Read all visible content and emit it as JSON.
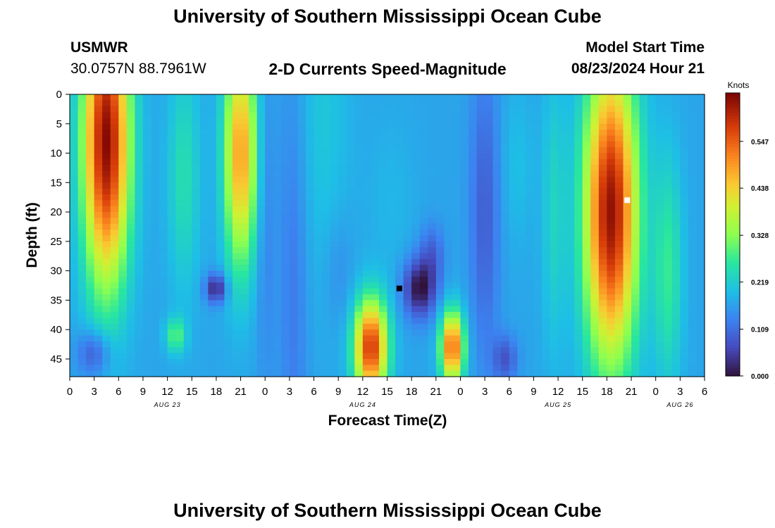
{
  "header": {
    "title": "University of Southern Mississippi Ocean Cube",
    "station": "USMWR",
    "coords": "30.0757N  88.7961W",
    "subtitle": "2-D Currents Speed-Magnitude",
    "model_start_label": "Model Start Time",
    "model_start_value": "08/23/2024 Hour 21"
  },
  "footer": {
    "title": "University of Southern Mississippi Ocean Cube"
  },
  "chart_data": {
    "type": "heatmap",
    "title": "2-D Currents Speed-Magnitude",
    "xlabel": "Forecast Time(Z)",
    "ylabel": "Depth (ft)",
    "colorbar_label": "Knots",
    "colorbar_ticks": [
      "0.000",
      "0.109",
      "0.219",
      "0.328",
      "0.438",
      "0.547"
    ],
    "colorbar_values": [
      0.0,
      0.109,
      0.219,
      0.328,
      0.438,
      0.547
    ],
    "zlim": [
      0,
      0.66
    ],
    "x_tick_labels": [
      "0",
      "3",
      "6",
      "9",
      "12",
      "15",
      "18",
      "21",
      "0",
      "3",
      "6",
      "9",
      "12",
      "15",
      "18",
      "21",
      "0",
      "3",
      "6",
      "9",
      "12",
      "15",
      "18",
      "21",
      "0",
      "3",
      "6"
    ],
    "x_range_hours_since_aug23_00z": [
      0,
      78
    ],
    "date_labels": [
      {
        "label": "AUG 23",
        "hour": 12
      },
      {
        "label": "AUG 24",
        "hour": 36
      },
      {
        "label": "AUG 25",
        "hour": 60
      },
      {
        "label": "AUG 26",
        "hour": 75
      }
    ],
    "y_tick_labels": [
      "0",
      "5",
      "10",
      "15",
      "20",
      "25",
      "30",
      "35",
      "40",
      "45"
    ],
    "y_ticks": [
      0,
      5,
      10,
      15,
      20,
      25,
      30,
      35,
      40,
      45
    ],
    "ylim": [
      0,
      48
    ],
    "y_inverted": true,
    "background_speed": 0.17,
    "features": [
      {
        "time": 4.5,
        "depth": 8,
        "w": 2.8,
        "h": 24,
        "amp": 0.48
      },
      {
        "time": 3.0,
        "depth": 44,
        "w": 2.0,
        "h": 4,
        "amp": -0.1
      },
      {
        "time": 13.0,
        "depth": 41,
        "w": 1.2,
        "h": 3,
        "amp": 0.12
      },
      {
        "time": 14.0,
        "depth": 14,
        "w": 2.0,
        "h": 20,
        "amp": 0.08
      },
      {
        "time": 18.0,
        "depth": 33,
        "w": 1.3,
        "h": 2.5,
        "amp": -0.15
      },
      {
        "time": 21.0,
        "depth": 10,
        "w": 2.0,
        "h": 19,
        "amp": 0.32
      },
      {
        "time": 24.0,
        "depth": 20,
        "w": 1.2,
        "h": 30,
        "amp": -0.04
      },
      {
        "time": 27.5,
        "depth": 30,
        "w": 1.8,
        "h": 40,
        "amp": -0.05
      },
      {
        "time": 31.0,
        "depth": 5,
        "w": 3.5,
        "h": 30,
        "amp": 0.04
      },
      {
        "time": 33.0,
        "depth": 30,
        "w": 1.8,
        "h": 10,
        "amp": -0.03
      },
      {
        "time": 37.0,
        "depth": 43,
        "w": 2.0,
        "h": 8,
        "amp": 0.42
      },
      {
        "time": 39.5,
        "depth": 18,
        "w": 3.0,
        "h": 15,
        "amp": 0.02
      },
      {
        "time": 43.0,
        "depth": 33,
        "w": 2.0,
        "h": 5,
        "amp": -0.17
      },
      {
        "time": 44.5,
        "depth": 27,
        "w": 1.5,
        "h": 5,
        "amp": -0.07
      },
      {
        "time": 47.0,
        "depth": 43,
        "w": 1.4,
        "h": 6,
        "amp": 0.38
      },
      {
        "time": 51.0,
        "depth": 20,
        "w": 1.8,
        "h": 25,
        "amp": -0.08
      },
      {
        "time": 53.5,
        "depth": 45,
        "w": 1.5,
        "h": 4,
        "amp": -0.09
      },
      {
        "time": 55.0,
        "depth": 12,
        "w": 2.0,
        "h": 14,
        "amp": 0.03
      },
      {
        "time": 59.5,
        "depth": 20,
        "w": 1.5,
        "h": 25,
        "amp": 0.06
      },
      {
        "time": 66.5,
        "depth": 20,
        "w": 3.2,
        "h": 25,
        "amp": 0.47
      },
      {
        "time": 73.5,
        "depth": 30,
        "w": 1.8,
        "h": 20,
        "amp": 0.1
      }
    ],
    "markers": [
      {
        "name": "minimum-marker",
        "time": 40.5,
        "depth": 33,
        "color": "#000000"
      },
      {
        "name": "maximum-marker",
        "time": 68.5,
        "depth": 18,
        "color": "#ffffff"
      }
    ]
  }
}
